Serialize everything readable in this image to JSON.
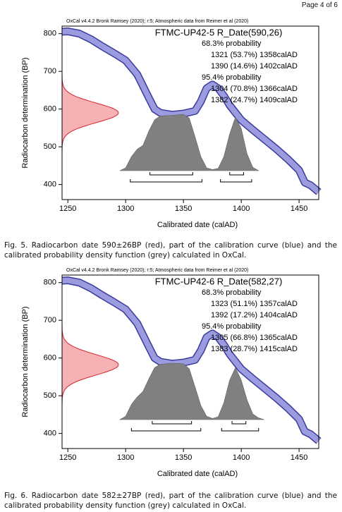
{
  "page_label": "Page 4 of 6",
  "captions": [
    "Fig. 5. Radiocarbon date 590±26BP (red), part of the calibration curve (blue) and the calibrated probability density function (grey) calculated in OxCal.",
    "Fig. 6. Radiocarbon date 582±27BP (red), part of the calibration curve (blue) and the calibrated probability density function (grey) calculated in OxCal."
  ],
  "chart_data": [
    {
      "type": "calibration",
      "header": "OxCal v4.4.2 Bronk Ramsey (2020); r:5; Atmospheric data from Reimer et al (2020)",
      "title": "FTMC-UP42-5 R_Date(590,26)",
      "x_label": "Calibrated date (calAD)",
      "y_label": "Radiocarbon determination (BP)",
      "xlim": [
        1245,
        1467
      ],
      "ylim": [
        360,
        820
      ],
      "xticks": [
        1250,
        1300,
        1350,
        1400,
        1450
      ],
      "yticks": [
        400,
        500,
        600,
        700,
        800
      ],
      "date_mean": 590,
      "date_sigma": 26,
      "curve_x": [
        1245,
        1250,
        1260,
        1270,
        1280,
        1290,
        1300,
        1310,
        1320,
        1325,
        1330,
        1340,
        1350,
        1360,
        1365,
        1370,
        1375,
        1380,
        1385,
        1390,
        1400,
        1410,
        1420,
        1430,
        1440,
        1450,
        1455,
        1460,
        1467
      ],
      "curve_bp": [
        805,
        806,
        800,
        785,
        766,
        748,
        729,
        692,
        630,
        600,
        590,
        585,
        588,
        595,
        620,
        655,
        665,
        655,
        635,
        610,
        571,
        545,
        520,
        495,
        468,
        438,
        405,
        398,
        380
      ],
      "posterior": {
        "x": [
          1295,
          1300,
          1305,
          1310,
          1315,
          1320,
          1325,
          1330,
          1340,
          1350,
          1355,
          1360,
          1365,
          1370,
          1375,
          1380,
          1385,
          1390,
          1395,
          1400,
          1405,
          1410,
          1415
        ],
        "probability": [
          0,
          0.05,
          0.25,
          0.38,
          0.45,
          0.7,
          0.9,
          0.97,
          0.98,
          1.0,
          0.93,
          0.6,
          0.25,
          0.05,
          0.02,
          0.04,
          0.25,
          0.65,
          0.95,
          0.75,
          0.3,
          0.06,
          0
        ]
      },
      "ranges": [
        {
          "label": "68.3% probability",
          "lines": [
            "1321 (53.7%) 1358calAD",
            "1390 (14.6%) 1402calAD"
          ],
          "intervals": [
            [
              1321,
              1358
            ],
            [
              1390,
              1402
            ]
          ]
        },
        {
          "label": "95.4% probability",
          "lines": [
            "1304 (70.8%) 1366calAD",
            "1382 (24.7%) 1409calAD"
          ],
          "intervals": [
            [
              1304,
              1366
            ],
            [
              1382,
              1409
            ]
          ]
        }
      ]
    },
    {
      "type": "calibration",
      "header": "OxCal v4.4.2 Bronk Ramsey (2020); r:5; Atmospheric data from Reimer et al (2020)",
      "title": "FTMC-UP42-6 R_Date(582,27)",
      "x_label": "Calibrated date (calAD)",
      "y_label": "Radiocarbon determination (BP)",
      "xlim": [
        1245,
        1467
      ],
      "ylim": [
        360,
        820
      ],
      "xticks": [
        1250,
        1300,
        1350,
        1400,
        1450
      ],
      "yticks": [
        400,
        500,
        600,
        700,
        800
      ],
      "date_mean": 582,
      "date_sigma": 27,
      "curve_x": [
        1245,
        1250,
        1260,
        1270,
        1280,
        1290,
        1300,
        1310,
        1320,
        1325,
        1330,
        1340,
        1350,
        1360,
        1365,
        1370,
        1375,
        1380,
        1385,
        1390,
        1400,
        1410,
        1420,
        1430,
        1440,
        1450,
        1455,
        1460,
        1467
      ],
      "curve_bp": [
        805,
        806,
        800,
        785,
        766,
        748,
        729,
        692,
        630,
        600,
        590,
        585,
        588,
        595,
        620,
        655,
        665,
        655,
        635,
        610,
        571,
        545,
        520,
        495,
        468,
        438,
        405,
        398,
        380
      ],
      "posterior": {
        "x": [
          1295,
          1300,
          1305,
          1310,
          1315,
          1320,
          1325,
          1330,
          1340,
          1350,
          1355,
          1360,
          1365,
          1370,
          1375,
          1380,
          1385,
          1390,
          1395,
          1400,
          1405,
          1410,
          1415,
          1420
        ],
        "probability": [
          0,
          0.06,
          0.27,
          0.4,
          0.5,
          0.72,
          0.92,
          0.98,
          1.0,
          0.99,
          0.9,
          0.58,
          0.25,
          0.06,
          0.02,
          0.05,
          0.3,
          0.7,
          0.92,
          0.7,
          0.35,
          0.1,
          0.03,
          0
        ]
      },
      "ranges": [
        {
          "label": "68.3% probability",
          "lines": [
            "1323 (51.1%) 1357calAD",
            "1392 (17.2%) 1404calAD"
          ],
          "intervals": [
            [
              1323,
              1357
            ],
            [
              1392,
              1404
            ]
          ]
        },
        {
          "label": "95.4% probability",
          "lines": [
            "1305 (66.8%) 1365calAD",
            "1383 (28.7%) 1415calAD"
          ],
          "intervals": [
            [
              1305,
              1365
            ],
            [
              1383,
              1415
            ]
          ]
        }
      ]
    }
  ]
}
